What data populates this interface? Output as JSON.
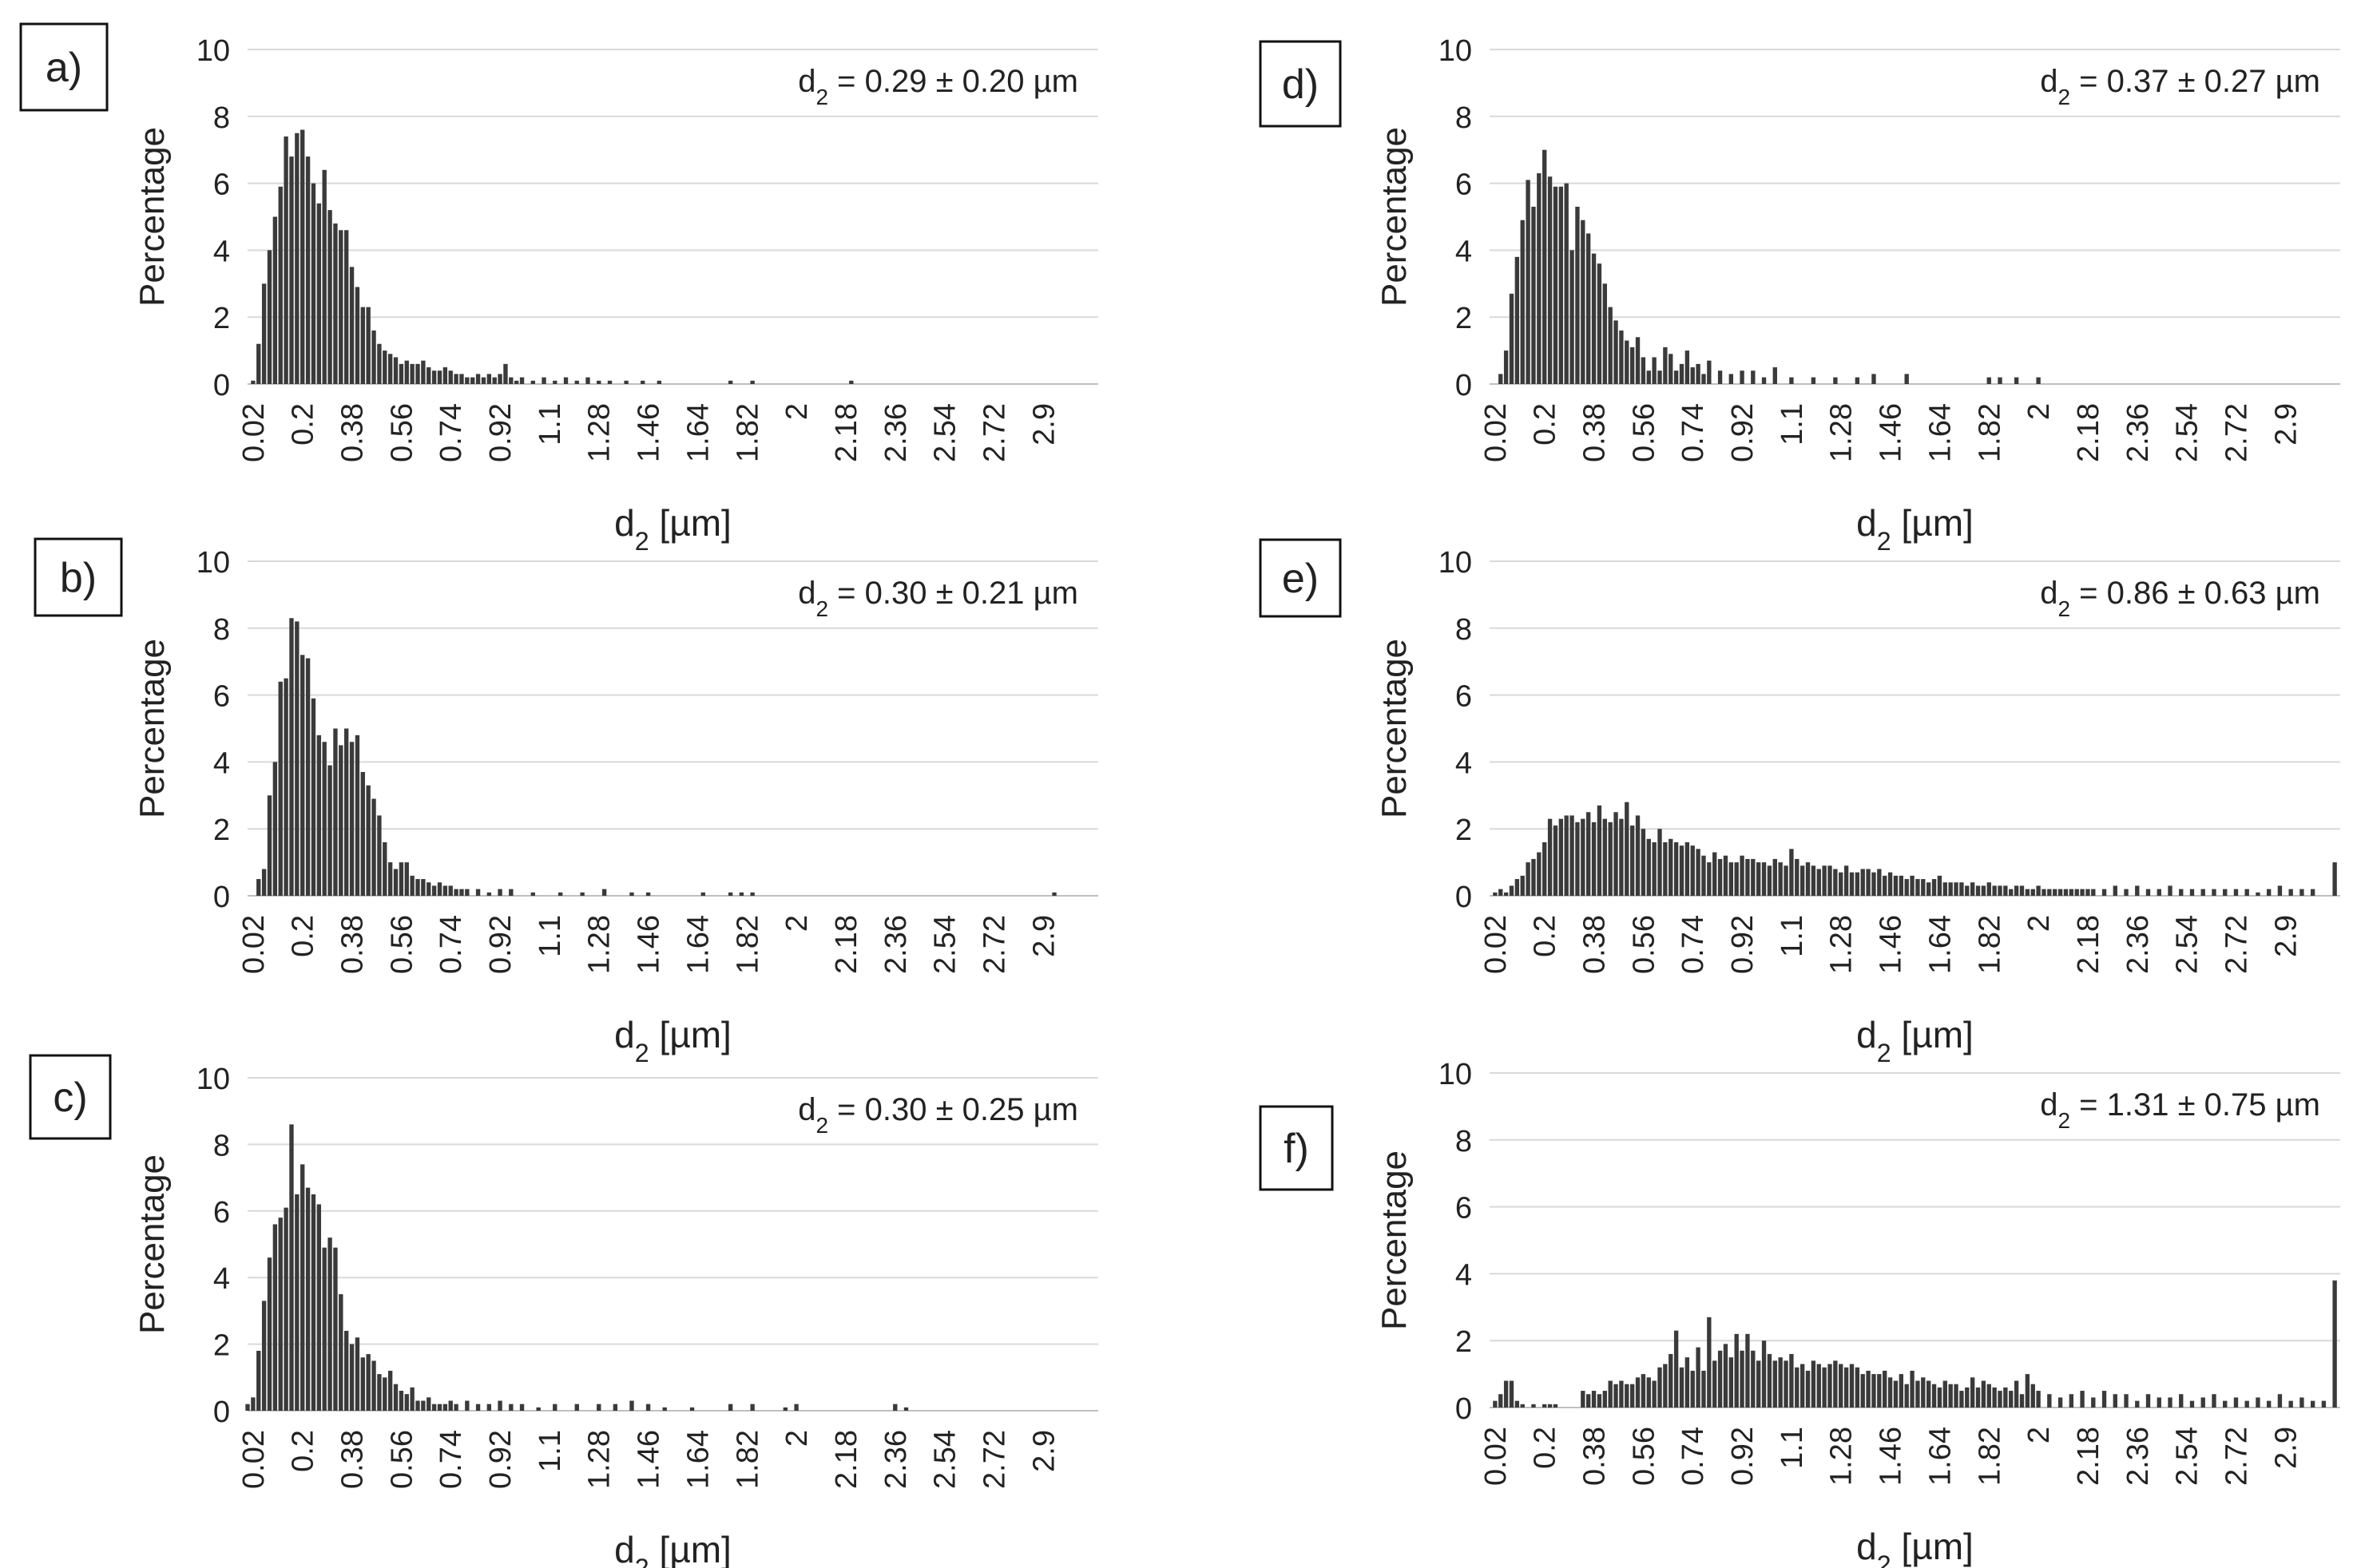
{
  "figure": {
    "accent_color": "#3a3a3a",
    "grid_color": "#d9d9d9",
    "axis_color": "#bfbfbf"
  },
  "chart_data": [
    {
      "panel": "a)",
      "type": "bar",
      "title": "",
      "annotation": {
        "prefix": "d",
        "sub": "2",
        "suffix": " = 0.29 ± 0.20 µm"
      },
      "xlabel": {
        "prefix": "d",
        "sub": "2",
        "suffix": " [µm]"
      },
      "ylabel": "Percentage",
      "ylim": [
        0,
        10
      ],
      "yticks": [
        0,
        2,
        4,
        6,
        8,
        10
      ],
      "xlim": [
        0.0,
        3.1
      ],
      "bin_width": 0.02,
      "xtick_labels": [
        "0.02",
        "0.2",
        "0.38",
        "0.56",
        "0.74",
        "0.92",
        "1.1",
        "1.28",
        "1.46",
        "1.64",
        "1.82",
        "2",
        "2.18",
        "2.36",
        "2.54",
        "2.72",
        "2.9"
      ],
      "x": [
        0.02,
        0.04,
        0.06,
        0.08,
        0.1,
        0.12,
        0.14,
        0.16,
        0.18,
        0.2,
        0.22,
        0.24,
        0.26,
        0.28,
        0.3,
        0.32,
        0.34,
        0.36,
        0.38,
        0.4,
        0.42,
        0.44,
        0.46,
        0.48,
        0.5,
        0.52,
        0.54,
        0.56,
        0.58,
        0.6,
        0.62,
        0.64,
        0.66,
        0.68,
        0.7,
        0.72,
        0.74,
        0.76,
        0.78,
        0.8,
        0.82,
        0.84,
        0.86,
        0.88,
        0.9,
        0.92,
        0.94,
        0.96,
        0.98,
        1.0,
        1.04,
        1.08,
        1.12,
        1.16,
        1.2,
        1.24,
        1.28,
        1.32,
        1.38,
        1.44,
        1.5,
        1.76,
        1.84,
        2.2
      ],
      "values": [
        0.1,
        1.2,
        3.0,
        4.0,
        5.0,
        5.9,
        7.4,
        6.8,
        7.5,
        7.6,
        6.8,
        6.0,
        5.4,
        6.4,
        5.2,
        4.8,
        4.6,
        4.6,
        3.5,
        2.9,
        2.3,
        2.3,
        1.6,
        1.2,
        1.0,
        0.9,
        0.8,
        0.6,
        0.7,
        0.6,
        0.6,
        0.7,
        0.5,
        0.4,
        0.4,
        0.5,
        0.4,
        0.3,
        0.3,
        0.2,
        0.2,
        0.3,
        0.2,
        0.3,
        0.2,
        0.3,
        0.6,
        0.2,
        0.1,
        0.2,
        0.1,
        0.2,
        0.1,
        0.2,
        0.1,
        0.2,
        0.1,
        0.1,
        0.1,
        0.1,
        0.1,
        0.1,
        0.1,
        0.1
      ]
    },
    {
      "panel": "b)",
      "type": "bar",
      "title": "",
      "annotation": {
        "prefix": "d",
        "sub": "2",
        "suffix": " = 0.30 ± 0.21 µm"
      },
      "xlabel": {
        "prefix": "d",
        "sub": "2",
        "suffix": " [µm]"
      },
      "ylabel": "Percentage",
      "ylim": [
        0,
        10
      ],
      "yticks": [
        0,
        2,
        4,
        6,
        8,
        10
      ],
      "xlim": [
        0.0,
        3.1
      ],
      "bin_width": 0.02,
      "xtick_labels": [
        "0.02",
        "0.2",
        "0.38",
        "0.56",
        "0.74",
        "0.92",
        "1.1",
        "1.28",
        "1.46",
        "1.64",
        "1.82",
        "2",
        "2.18",
        "2.36",
        "2.54",
        "2.72",
        "2.9"
      ],
      "x": [
        0.04,
        0.06,
        0.08,
        0.1,
        0.12,
        0.14,
        0.16,
        0.18,
        0.2,
        0.22,
        0.24,
        0.26,
        0.28,
        0.3,
        0.32,
        0.34,
        0.36,
        0.38,
        0.4,
        0.42,
        0.44,
        0.46,
        0.48,
        0.5,
        0.52,
        0.54,
        0.56,
        0.58,
        0.6,
        0.62,
        0.64,
        0.66,
        0.68,
        0.7,
        0.72,
        0.74,
        0.76,
        0.78,
        0.8,
        0.84,
        0.88,
        0.92,
        0.96,
        1.04,
        1.14,
        1.22,
        1.3,
        1.4,
        1.46,
        1.66,
        1.76,
        1.8,
        1.84,
        2.94
      ],
      "values": [
        0.5,
        0.8,
        3.0,
        4.0,
        6.4,
        6.5,
        8.3,
        8.2,
        7.2,
        7.1,
        5.9,
        4.8,
        4.6,
        3.9,
        5.0,
        4.5,
        5.0,
        4.6,
        4.8,
        3.7,
        3.3,
        2.9,
        2.4,
        1.6,
        1.0,
        0.8,
        1.0,
        1.0,
        0.6,
        0.5,
        0.5,
        0.4,
        0.3,
        0.4,
        0.3,
        0.3,
        0.2,
        0.2,
        0.2,
        0.2,
        0.1,
        0.2,
        0.2,
        0.1,
        0.1,
        0.1,
        0.2,
        0.1,
        0.1,
        0.1,
        0.1,
        0.1,
        0.1,
        0.1
      ]
    },
    {
      "panel": "c)",
      "type": "bar",
      "title": "",
      "annotation": {
        "prefix": "d",
        "sub": "2",
        "suffix": " = 0.30 ± 0.25 µm"
      },
      "xlabel": {
        "prefix": "d",
        "sub": "2",
        "suffix": " [µm]"
      },
      "ylabel": "Percentage",
      "ylim": [
        0,
        10
      ],
      "yticks": [
        0,
        2,
        4,
        6,
        8,
        10
      ],
      "xlim": [
        0.0,
        3.1
      ],
      "bin_width": 0.02,
      "xtick_labels": [
        "0.02",
        "0.2",
        "0.38",
        "0.56",
        "0.74",
        "0.92",
        "1.1",
        "1.28",
        "1.46",
        "1.64",
        "1.82",
        "2",
        "2.18",
        "2.36",
        "2.54",
        "2.72",
        "2.9"
      ],
      "x": [
        0.0,
        0.02,
        0.04,
        0.06,
        0.08,
        0.1,
        0.12,
        0.14,
        0.16,
        0.18,
        0.2,
        0.22,
        0.24,
        0.26,
        0.28,
        0.3,
        0.32,
        0.34,
        0.36,
        0.38,
        0.4,
        0.42,
        0.44,
        0.46,
        0.48,
        0.5,
        0.52,
        0.54,
        0.56,
        0.58,
        0.6,
        0.62,
        0.64,
        0.66,
        0.68,
        0.7,
        0.72,
        0.74,
        0.76,
        0.8,
        0.84,
        0.88,
        0.92,
        0.96,
        1.0,
        1.06,
        1.12,
        1.2,
        1.28,
        1.34,
        1.4,
        1.46,
        1.52,
        1.62,
        1.76,
        1.84,
        1.96,
        2.0,
        2.36,
        2.4
      ],
      "values": [
        0.2,
        0.4,
        1.8,
        3.3,
        4.6,
        5.6,
        5.8,
        6.1,
        8.6,
        6.5,
        7.4,
        6.7,
        6.5,
        6.2,
        4.9,
        5.2,
        4.9,
        3.5,
        2.4,
        2.0,
        2.2,
        1.6,
        1.7,
        1.5,
        1.1,
        1.0,
        1.2,
        0.8,
        0.6,
        0.5,
        0.7,
        0.3,
        0.3,
        0.4,
        0.2,
        0.2,
        0.2,
        0.3,
        0.2,
        0.3,
        0.2,
        0.2,
        0.3,
        0.2,
        0.2,
        0.1,
        0.2,
        0.2,
        0.2,
        0.2,
        0.3,
        0.2,
        0.1,
        0.1,
        0.2,
        0.2,
        0.1,
        0.2,
        0.2,
        0.1
      ]
    },
    {
      "panel": "d)",
      "type": "bar",
      "title": "",
      "annotation": {
        "prefix": "d",
        "sub": "2",
        "suffix": " = 0.37 ± 0.27 µm"
      },
      "xlabel": {
        "prefix": "d",
        "sub": "2",
        "suffix": " [µm]"
      },
      "ylabel": "Percentage",
      "ylim": [
        0,
        10
      ],
      "yticks": [
        0,
        2,
        4,
        6,
        8,
        10
      ],
      "xlim": [
        0.0,
        3.1
      ],
      "bin_width": 0.02,
      "xtick_labels": [
        "0.02",
        "0.2",
        "0.38",
        "0.56",
        "0.74",
        "0.92",
        "1.1",
        "1.28",
        "1.46",
        "1.64",
        "1.82",
        "2",
        "2.18",
        "2.36",
        "2.54",
        "2.72",
        "2.9"
      ],
      "x": [
        0.04,
        0.06,
        0.08,
        0.1,
        0.12,
        0.14,
        0.16,
        0.18,
        0.2,
        0.22,
        0.24,
        0.26,
        0.28,
        0.3,
        0.32,
        0.34,
        0.36,
        0.38,
        0.4,
        0.42,
        0.44,
        0.46,
        0.48,
        0.5,
        0.52,
        0.54,
        0.56,
        0.58,
        0.6,
        0.62,
        0.64,
        0.66,
        0.68,
        0.7,
        0.72,
        0.74,
        0.76,
        0.78,
        0.8,
        0.84,
        0.88,
        0.92,
        0.96,
        1.0,
        1.04,
        1.1,
        1.18,
        1.26,
        1.34,
        1.4,
        1.52,
        1.82,
        1.86,
        1.92,
        2.0
      ],
      "values": [
        0.3,
        1.0,
        2.7,
        3.8,
        4.9,
        6.1,
        5.3,
        6.3,
        7.0,
        6.2,
        5.9,
        5.9,
        6.0,
        4.0,
        5.3,
        4.9,
        4.5,
        3.9,
        3.6,
        3.0,
        2.3,
        1.9,
        1.6,
        1.3,
        1.1,
        1.4,
        0.8,
        0.4,
        0.8,
        0.4,
        1.1,
        0.9,
        0.4,
        0.6,
        1.0,
        0.5,
        0.6,
        0.3,
        0.7,
        0.4,
        0.3,
        0.4,
        0.4,
        0.2,
        0.5,
        0.2,
        0.2,
        0.2,
        0.2,
        0.3,
        0.3,
        0.2,
        0.2,
        0.2,
        0.2
      ]
    },
    {
      "panel": "e)",
      "type": "bar",
      "title": "",
      "annotation": {
        "prefix": "d",
        "sub": "2",
        "suffix": " = 0.86 ± 0.63 µm"
      },
      "xlabel": {
        "prefix": "d",
        "sub": "2",
        "suffix": " [µm]"
      },
      "ylabel": "Percentage",
      "ylim": [
        0,
        10
      ],
      "yticks": [
        0,
        2,
        4,
        6,
        8,
        10
      ],
      "xlim": [
        0.0,
        3.1
      ],
      "bin_width": 0.02,
      "xtick_labels": [
        "0.02",
        "0.2",
        "0.38",
        "0.56",
        "0.74",
        "0.92",
        "1.1",
        "1.28",
        "1.46",
        "1.64",
        "1.82",
        "2",
        "2.18",
        "2.36",
        "2.54",
        "2.72",
        "2.9"
      ],
      "x": [
        0.02,
        0.04,
        0.06,
        0.08,
        0.1,
        0.12,
        0.14,
        0.16,
        0.18,
        0.2,
        0.22,
        0.24,
        0.26,
        0.28,
        0.3,
        0.32,
        0.34,
        0.36,
        0.38,
        0.4,
        0.42,
        0.44,
        0.46,
        0.48,
        0.5,
        0.52,
        0.54,
        0.56,
        0.58,
        0.6,
        0.62,
        0.64,
        0.66,
        0.68,
        0.7,
        0.72,
        0.74,
        0.76,
        0.78,
        0.8,
        0.82,
        0.84,
        0.86,
        0.88,
        0.9,
        0.92,
        0.94,
        0.96,
        0.98,
        1.0,
        1.02,
        1.04,
        1.06,
        1.08,
        1.1,
        1.12,
        1.14,
        1.16,
        1.18,
        1.2,
        1.22,
        1.24,
        1.26,
        1.28,
        1.3,
        1.32,
        1.34,
        1.36,
        1.38,
        1.4,
        1.42,
        1.44,
        1.46,
        1.48,
        1.5,
        1.52,
        1.54,
        1.56,
        1.58,
        1.6,
        1.62,
        1.64,
        1.66,
        1.68,
        1.7,
        1.72,
        1.74,
        1.76,
        1.78,
        1.8,
        1.82,
        1.84,
        1.86,
        1.88,
        1.9,
        1.92,
        1.94,
        1.96,
        1.98,
        2.0,
        2.02,
        2.04,
        2.06,
        2.08,
        2.1,
        2.12,
        2.14,
        2.16,
        2.18,
        2.2,
        2.24,
        2.28,
        2.32,
        2.36,
        2.4,
        2.44,
        2.48,
        2.52,
        2.56,
        2.6,
        2.64,
        2.68,
        2.72,
        2.76,
        2.8,
        2.84,
        2.88,
        2.92,
        2.96,
        3.0,
        3.08
      ],
      "values": [
        0.1,
        0.2,
        0.1,
        0.3,
        0.5,
        0.6,
        1.0,
        1.1,
        1.3,
        1.6,
        2.3,
        2.1,
        2.3,
        2.4,
        2.4,
        2.2,
        2.3,
        2.5,
        2.2,
        2.7,
        2.3,
        2.2,
        2.5,
        2.3,
        2.8,
        2.1,
        2.4,
        2.0,
        1.7,
        1.6,
        2.0,
        1.6,
        1.7,
        1.6,
        1.5,
        1.6,
        1.5,
        1.4,
        1.2,
        1.0,
        1.3,
        1.1,
        1.2,
        1.0,
        1.0,
        1.2,
        1.1,
        1.1,
        1.0,
        1.0,
        0.9,
        1.1,
        1.0,
        0.9,
        1.4,
        1.1,
        0.9,
        1.0,
        0.9,
        0.8,
        0.9,
        0.9,
        0.8,
        0.7,
        0.9,
        0.7,
        0.7,
        0.8,
        0.8,
        0.7,
        0.8,
        0.6,
        0.7,
        0.6,
        0.6,
        0.5,
        0.6,
        0.5,
        0.5,
        0.4,
        0.5,
        0.6,
        0.4,
        0.4,
        0.4,
        0.4,
        0.3,
        0.4,
        0.3,
        0.3,
        0.4,
        0.3,
        0.3,
        0.3,
        0.2,
        0.3,
        0.3,
        0.2,
        0.2,
        0.3,
        0.2,
        0.2,
        0.2,
        0.2,
        0.2,
        0.2,
        0.2,
        0.2,
        0.2,
        0.2,
        0.2,
        0.3,
        0.2,
        0.3,
        0.2,
        0.2,
        0.3,
        0.2,
        0.2,
        0.2,
        0.2,
        0.2,
        0.2,
        0.2,
        0.1,
        0.2,
        0.3,
        0.2,
        0.2,
        0.2,
        1.0
      ]
    },
    {
      "panel": "f)",
      "type": "bar",
      "title": "",
      "annotation": {
        "prefix": "d",
        "sub": "2",
        "suffix": " = 1.31 ± 0.75 µm"
      },
      "xlabel": {
        "prefix": "d",
        "sub": "2",
        "suffix": " [µm]"
      },
      "ylabel": "Percentage",
      "ylim": [
        0,
        10
      ],
      "yticks": [
        0,
        2,
        4,
        6,
        8,
        10
      ],
      "xlim": [
        0.0,
        3.1
      ],
      "bin_width": 0.02,
      "xtick_labels": [
        "0.02",
        "0.2",
        "0.38",
        "0.56",
        "0.74",
        "0.92",
        "1.1",
        "1.28",
        "1.46",
        "1.64",
        "1.82",
        "2",
        "2.18",
        "2.36",
        "2.54",
        "2.72",
        "2.9"
      ],
      "x": [
        0.02,
        0.04,
        0.06,
        0.08,
        0.1,
        0.12,
        0.16,
        0.2,
        0.22,
        0.24,
        0.34,
        0.36,
        0.38,
        0.4,
        0.42,
        0.44,
        0.46,
        0.48,
        0.5,
        0.52,
        0.54,
        0.56,
        0.58,
        0.6,
        0.62,
        0.64,
        0.66,
        0.68,
        0.7,
        0.72,
        0.74,
        0.76,
        0.78,
        0.8,
        0.82,
        0.84,
        0.86,
        0.88,
        0.9,
        0.92,
        0.94,
        0.96,
        0.98,
        1.0,
        1.02,
        1.04,
        1.06,
        1.08,
        1.1,
        1.12,
        1.14,
        1.16,
        1.18,
        1.2,
        1.22,
        1.24,
        1.26,
        1.28,
        1.3,
        1.32,
        1.34,
        1.36,
        1.38,
        1.4,
        1.42,
        1.44,
        1.46,
        1.48,
        1.5,
        1.52,
        1.54,
        1.56,
        1.58,
        1.6,
        1.62,
        1.64,
        1.66,
        1.68,
        1.7,
        1.72,
        1.74,
        1.76,
        1.78,
        1.8,
        1.82,
        1.84,
        1.86,
        1.88,
        1.9,
        1.92,
        1.94,
        1.96,
        1.98,
        2.0,
        2.04,
        2.08,
        2.12,
        2.16,
        2.2,
        2.24,
        2.28,
        2.32,
        2.36,
        2.4,
        2.44,
        2.48,
        2.52,
        2.56,
        2.6,
        2.64,
        2.68,
        2.72,
        2.76,
        2.8,
        2.84,
        2.88,
        2.92,
        2.96,
        3.0,
        3.04,
        3.08
      ],
      "values": [
        0.2,
        0.4,
        0.8,
        0.8,
        0.2,
        0.1,
        0.1,
        0.1,
        0.1,
        0.1,
        0.5,
        0.4,
        0.5,
        0.4,
        0.5,
        0.8,
        0.7,
        0.8,
        0.7,
        0.7,
        0.9,
        1.0,
        0.9,
        0.8,
        1.2,
        1.3,
        1.6,
        2.3,
        1.2,
        1.5,
        1.1,
        1.8,
        1.1,
        2.7,
        1.4,
        1.7,
        1.9,
        1.5,
        2.2,
        1.7,
        2.2,
        1.7,
        1.4,
        2.0,
        1.6,
        1.4,
        1.5,
        1.4,
        1.6,
        1.2,
        1.3,
        1.1,
        1.4,
        1.3,
        1.2,
        1.3,
        1.4,
        1.3,
        1.2,
        1.3,
        1.2,
        1.0,
        1.1,
        1.0,
        1.0,
        1.1,
        0.9,
        0.8,
        1.0,
        0.7,
        1.1,
        0.8,
        0.9,
        0.8,
        0.7,
        0.6,
        0.8,
        0.7,
        0.7,
        0.5,
        0.6,
        0.9,
        0.6,
        0.8,
        0.7,
        0.6,
        0.5,
        0.6,
        0.5,
        0.8,
        0.4,
        1.0,
        0.7,
        0.5,
        0.4,
        0.3,
        0.4,
        0.5,
        0.3,
        0.5,
        0.4,
        0.4,
        0.2,
        0.4,
        0.3,
        0.3,
        0.4,
        0.2,
        0.3,
        0.4,
        0.2,
        0.3,
        0.2,
        0.3,
        0.2,
        0.4,
        0.2,
        0.3,
        0.2,
        0.2,
        3.8
      ]
    }
  ]
}
